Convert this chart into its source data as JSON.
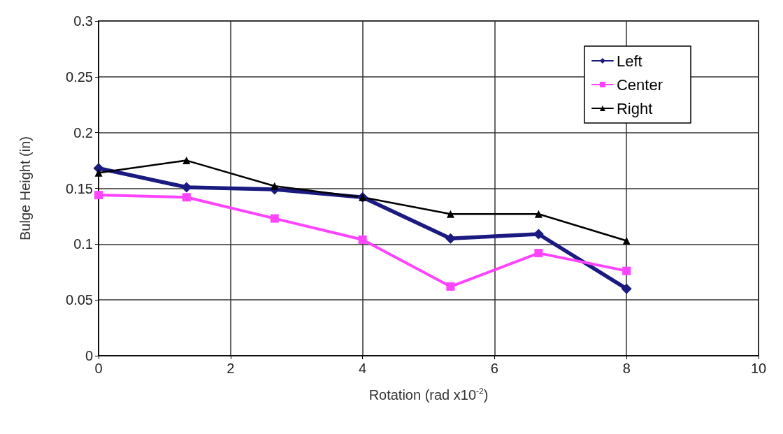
{
  "chart_data": {
    "type": "line",
    "xlabel": "Rotation (rad x10$^{-2}$)",
    "ylabel": "Bulge Height (in)",
    "xlim": [
      0,
      10
    ],
    "xticks": [
      0,
      2,
      4,
      6,
      8,
      10
    ],
    "ylim": [
      0,
      0.3
    ],
    "yticks": [
      0,
      0.05,
      0.1,
      0.15,
      0.2,
      0.25,
      0.3
    ],
    "grid": true,
    "legend": "top right",
    "line_style": "solid",
    "x": [
      0,
      1.333,
      2.667,
      4,
      5.333,
      6.667,
      8
    ],
    "series": [
      {
        "name": "Left",
        "color": "#1a1a80",
        "marker": "diamond",
        "values": [
          0.168,
          0.151,
          0.149,
          0.142,
          0.105,
          0.109,
          0.06
        ]
      },
      {
        "name": "Center",
        "color": "#ff44ff",
        "marker": "square",
        "values": [
          0.144,
          0.142,
          0.123,
          0.104,
          0.062,
          0.092,
          0.076
        ]
      },
      {
        "name": "Right",
        "color": "#000000",
        "marker": "triangle",
        "values": [
          0.164,
          0.175,
          0.152,
          0.142,
          0.127,
          0.127,
          0.103
        ]
      }
    ]
  }
}
